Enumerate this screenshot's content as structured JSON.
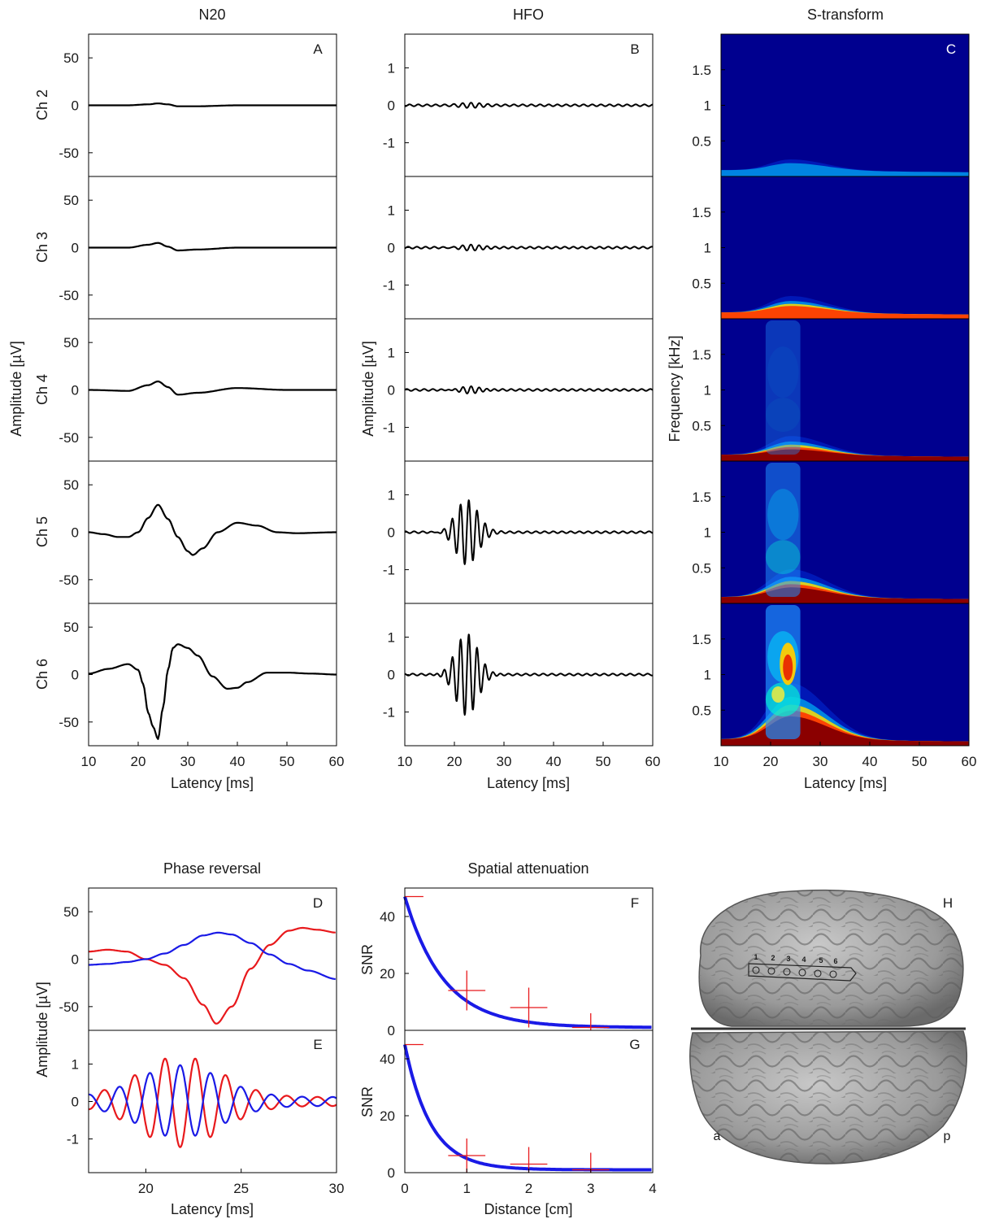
{
  "panels_top": {
    "n20_title": "N20",
    "hfo_title": "HFO",
    "st_title": "S-transform",
    "labels": {
      "A": "A",
      "B": "B",
      "C": "C"
    },
    "channels": [
      "Ch 2",
      "Ch 3",
      "Ch 4",
      "Ch 5",
      "Ch 6"
    ],
    "n20_ylabel": "Amplitude [µV]",
    "hfo_ylabel": "Amplitude [µV]",
    "st_ylabel": "Frequency [kHz]",
    "xlabel": "Latency [ms]",
    "n20_yticks": [
      "50",
      "0",
      "-50"
    ],
    "hfo_yticks": [
      "1",
      "0",
      "-1"
    ],
    "st_yticks": [
      "1.5",
      "1",
      "0.5"
    ],
    "xticks": [
      "10",
      "20",
      "30",
      "40",
      "50",
      "60"
    ]
  },
  "panels_bottom": {
    "phase_title": "Phase reversal",
    "spatial_title": "Spatial attenuation",
    "labels": {
      "D": "D",
      "E": "E",
      "F": "F",
      "G": "G",
      "H": "H"
    },
    "phase_ylabel": "Amplitude [µV]",
    "phase_xlabel": "Latency [ms]",
    "phase_xticks": [
      "20",
      "25",
      "30"
    ],
    "d_yticks": [
      "50",
      "0",
      "-50"
    ],
    "e_yticks": [
      "1",
      "0",
      "-1"
    ],
    "snr_label": "SNR",
    "snr_yticks": [
      "40",
      "20",
      "0"
    ],
    "spatial_xlabel": "Distance [cm]",
    "spatial_xticks": [
      "0",
      "1",
      "2",
      "3",
      "4"
    ],
    "brain": {
      "anterior": "a",
      "posterior": "p",
      "electrodes": [
        "1",
        "2",
        "3",
        "4",
        "5",
        "6"
      ]
    }
  },
  "colors": {
    "trace": "#000000",
    "red": "#e8191c",
    "blue": "#1a1ae6",
    "fit": "#1a1ae6",
    "cross": "#e8191c",
    "heat_bg": "#00008f"
  },
  "chart_data": [
    {
      "type": "line",
      "panel": "A",
      "title": "N20",
      "xlabel": "Latency [ms]",
      "ylabel": "Amplitude [µV]",
      "xlim": [
        10,
        60
      ],
      "ylim": [
        -75,
        75
      ],
      "series": [
        {
          "name": "Ch 2",
          "x": [
            10,
            18,
            22,
            24,
            26,
            28,
            32,
            40,
            50,
            60
          ],
          "y": [
            0,
            0,
            1,
            2,
            1,
            -1,
            -1,
            0,
            0,
            0
          ]
        },
        {
          "name": "Ch 3",
          "x": [
            10,
            18,
            22,
            24,
            26,
            28,
            32,
            40,
            50,
            60
          ],
          "y": [
            0,
            0,
            3,
            5,
            1,
            -3,
            -2,
            0,
            0,
            0
          ]
        },
        {
          "name": "Ch 4",
          "x": [
            10,
            18,
            22,
            24,
            26,
            28,
            32,
            40,
            50,
            60
          ],
          "y": [
            0,
            -1,
            5,
            9,
            3,
            -5,
            -3,
            2,
            0,
            0
          ]
        },
        {
          "name": "Ch 5",
          "x": [
            10,
            13,
            16,
            18,
            20,
            22,
            24,
            26,
            28,
            30,
            31,
            33,
            36,
            40,
            44,
            48,
            52,
            60
          ],
          "y": [
            0,
            -2,
            -5,
            -5,
            0,
            15,
            29,
            14,
            -5,
            -20,
            -24,
            -17,
            0,
            10,
            7,
            0,
            -1,
            0
          ]
        },
        {
          "name": "Ch 6",
          "x": [
            10,
            14,
            18,
            20,
            21,
            22,
            23,
            24,
            25,
            26,
            27,
            28,
            30,
            32,
            35,
            38,
            40,
            42,
            46,
            50,
            55,
            60
          ],
          "y": [
            1,
            6,
            11,
            5,
            -10,
            -40,
            -55,
            -68,
            -35,
            5,
            28,
            32,
            28,
            20,
            -2,
            -15,
            -14,
            -8,
            2,
            2,
            1,
            0
          ]
        }
      ]
    },
    {
      "type": "line",
      "panel": "B",
      "title": "HFO",
      "xlabel": "Latency [ms]",
      "ylabel": "Amplitude [µV]",
      "xlim": [
        10,
        60
      ],
      "ylim": [
        -1.9,
        1.9
      ],
      "oscillation_frequency_hz": 600,
      "series": [
        {
          "name": "Ch 2",
          "peak_amplitude": 0.05,
          "burst_center_ms": 23
        },
        {
          "name": "Ch 3",
          "peak_amplitude": 0.08,
          "burst_center_ms": 23
        },
        {
          "name": "Ch 4",
          "peak_amplitude": 0.12,
          "burst_center_ms": 23
        },
        {
          "name": "Ch 5",
          "peak_amplitude": 0.88,
          "burst_center_ms": 22.5
        },
        {
          "name": "Ch 6",
          "peak_amplitude": 1.12,
          "burst_center_ms": 22.5
        }
      ]
    },
    {
      "type": "heatmap",
      "panel": "C",
      "title": "S-transform",
      "xlabel": "Latency [ms]",
      "ylabel": "Frequency [kHz]",
      "xlim": [
        10,
        60
      ],
      "ylim": [
        0,
        2
      ],
      "channels": [
        "Ch 2",
        "Ch 3",
        "Ch 4",
        "Ch 5",
        "Ch 6"
      ],
      "low_band_peak_khz": [
        0.15,
        0.2,
        0.22,
        0.3,
        0.55
      ],
      "hfo_column_center_ms": 22.5,
      "hfo_column_intensity": [
        0,
        0,
        0.1,
        0.55,
        1.0
      ]
    },
    {
      "type": "line",
      "panel": "D",
      "title": "Phase reversal",
      "xlabel": "Latency [ms]",
      "ylabel": "Amplitude [µV]",
      "xlim": [
        17,
        30
      ],
      "ylim": [
        -75,
        75
      ],
      "series": [
        {
          "color": "red",
          "x": [
            17,
            18,
            19,
            20,
            21,
            22,
            23,
            23.7,
            24.5,
            25.5,
            26.5,
            27.5,
            28.2,
            29,
            30
          ],
          "y": [
            8,
            10,
            8,
            0,
            -6,
            -20,
            -48,
            -68,
            -50,
            -10,
            15,
            30,
            33,
            31,
            28
          ]
        },
        {
          "color": "blue",
          "x": [
            17,
            18,
            19,
            20,
            21,
            22,
            23,
            23.8,
            24.5,
            25.5,
            26.5,
            27.5,
            28.5,
            30
          ],
          "y": [
            -6,
            -5,
            -3,
            0,
            6,
            15,
            25,
            28,
            26,
            17,
            5,
            -5,
            -12,
            -21
          ]
        }
      ]
    },
    {
      "type": "line",
      "panel": "E",
      "xlabel": "Latency [ms]",
      "ylabel": "Amplitude [µV]",
      "xlim": [
        17,
        30
      ],
      "ylim": [
        -1.9,
        1.9
      ],
      "series": [
        {
          "color": "red",
          "peak_amplitude": 1.1
        },
        {
          "color": "blue",
          "peak_amplitude": 0.85
        }
      ]
    },
    {
      "type": "scatter",
      "panel": "F",
      "title": "Spatial attenuation",
      "ylabel": "SNR",
      "xlim": [
        0,
        4
      ],
      "ylim": [
        0,
        50
      ],
      "points": {
        "x": [
          0,
          1,
          2,
          3
        ],
        "y": [
          47,
          14,
          8,
          1
        ],
        "y_err": [
          0,
          7,
          7,
          5
        ],
        "x_err": [
          0.3,
          0.3,
          0.3,
          0.3
        ]
      },
      "fit": {
        "a": 46,
        "b": 1.6,
        "c": 1
      }
    },
    {
      "type": "scatter",
      "panel": "G",
      "xlabel": "Distance [cm]",
      "ylabel": "SNR",
      "xlim": [
        0,
        4
      ],
      "ylim": [
        0,
        50
      ],
      "points": {
        "x": [
          0,
          1,
          2,
          3
        ],
        "y": [
          45,
          6,
          3,
          1
        ],
        "y_err": [
          0,
          6,
          6,
          6
        ],
        "x_err": [
          0.3,
          0.3,
          0.3,
          0.3
        ]
      },
      "fit": {
        "a": 44,
        "b": 2.4,
        "c": 1
      }
    }
  ]
}
